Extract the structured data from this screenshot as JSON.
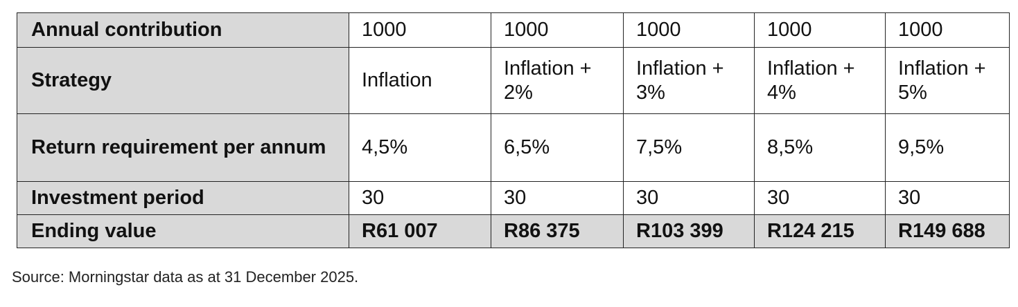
{
  "table": {
    "rows": [
      [
        "Annual contribution",
        "1000",
        "1000",
        "1000",
        "1000",
        "1000"
      ],
      [
        "Strategy",
        "Inflation",
        "Inflation + 2%",
        "Inflation + 3%",
        "Inflation + 4%",
        "Inflation + 5%"
      ],
      [
        "Return requirement per annum",
        "4,5%",
        "6,5%",
        "7,5%",
        "8,5%",
        "9,5%"
      ],
      [
        "Investment period",
        "30",
        "30",
        "30",
        "30",
        "30"
      ],
      [
        "Ending value",
        "R61 007",
        "R86 375",
        "R103 399",
        "R124 215",
        "R149 688"
      ]
    ]
  },
  "source": "Source: Morningstar data as at 31 December 2025."
}
